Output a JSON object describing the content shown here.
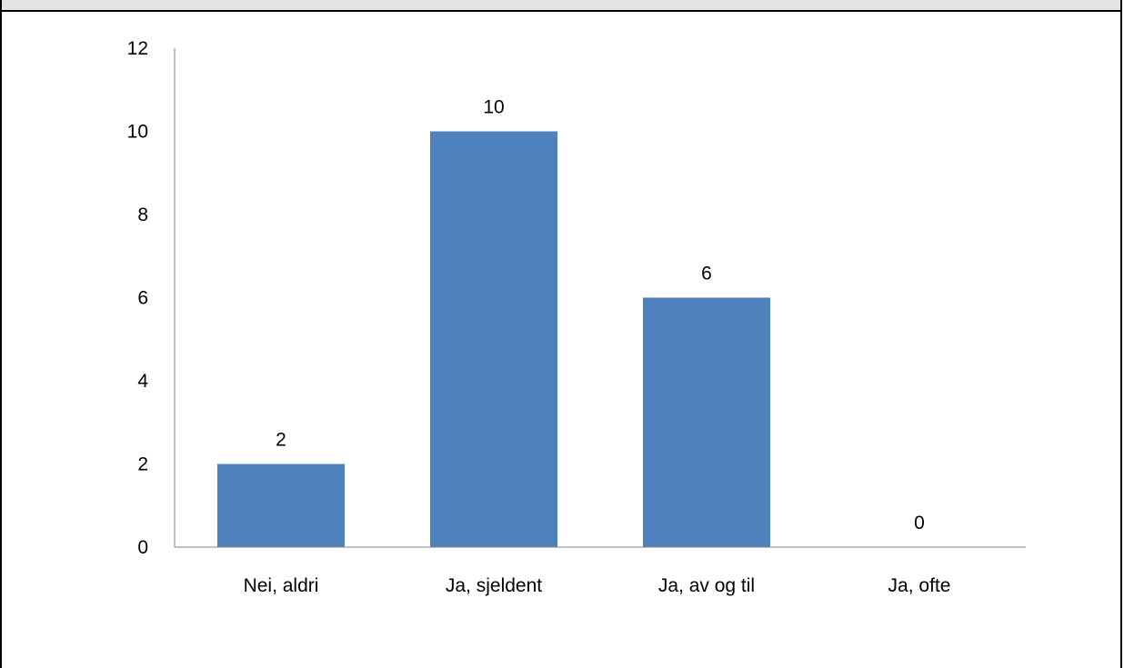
{
  "chart_data": {
    "type": "bar",
    "categories": [
      "Nei, aldri",
      "Ja, sjeldent",
      "Ja, av og til",
      "Ja, ofte"
    ],
    "values": [
      2,
      10,
      6,
      0
    ],
    "data_labels": [
      "2",
      "10",
      "6",
      "0"
    ],
    "title": "",
    "xlabel": "",
    "ylabel": "",
    "ylim": [
      0,
      12
    ],
    "y_ticks": [
      0,
      2,
      4,
      6,
      8,
      10,
      12
    ],
    "y_tick_labels": [
      "0",
      "2",
      "4",
      "6",
      "8",
      "10",
      "12"
    ],
    "grid": false,
    "legend": "none",
    "bar_color": "#4f81bd",
    "axis_color": "#868686"
  }
}
